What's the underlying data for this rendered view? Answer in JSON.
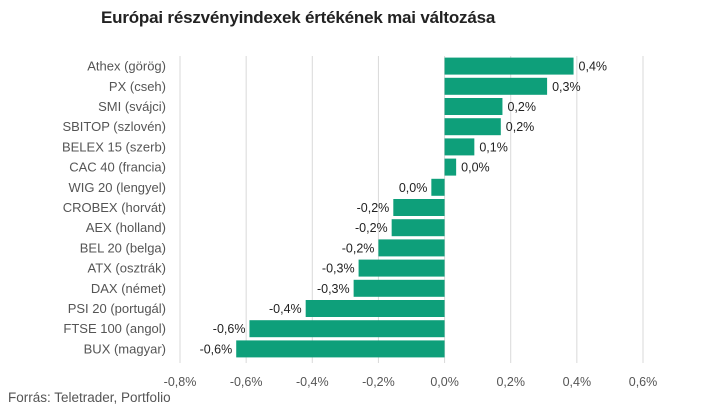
{
  "chart_data": {
    "type": "bar",
    "orientation": "horizontal",
    "title": "Európai részvényindexek értékének mai változása",
    "source": "Forrás: Teletrader, Portfolio",
    "categories": [
      "Athex (görög)",
      "PX (cseh)",
      "SMI (svájci)",
      "SBITOP (szlovén)",
      "BELEX 15 (szerb)",
      "CAC 40 (francia)",
      "WIG 20 (lengyel)",
      "CROBEX (horvát)",
      "AEX (holland)",
      "BEL 20 (belga)",
      "ATX (osztrák)",
      "DAX (német)",
      "PSI 20 (portugál)",
      "FTSE 100 (angol)",
      "BUX (magyar)"
    ],
    "values": [
      0.39,
      0.31,
      0.175,
      0.17,
      0.09,
      0.035,
      -0.04,
      -0.155,
      -0.16,
      -0.2,
      -0.26,
      -0.275,
      -0.42,
      -0.59,
      -0.63
    ],
    "value_labels": [
      "0,4%",
      "0,3%",
      "0,2%",
      "0,2%",
      "0,1%",
      "0,0%",
      "0,0%",
      "-0,2%",
      "-0,2%",
      "-0,2%",
      "-0,3%",
      "-0,3%",
      "-0,4%",
      "-0,6%",
      "-0,6%"
    ],
    "xlim": [
      -0.8,
      0.6
    ],
    "xticks": [
      -0.8,
      -0.6,
      -0.4,
      -0.2,
      0.0,
      0.2,
      0.4,
      0.6
    ],
    "xtick_labels": [
      "-0,8%",
      "-0,6%",
      "-0,4%",
      "-0,2%",
      "0,0%",
      "0,2%",
      "0,4%",
      "0,6%"
    ],
    "grid": true,
    "bar_color": "#0e9f7a",
    "grid_color": "#d9d9d9"
  }
}
